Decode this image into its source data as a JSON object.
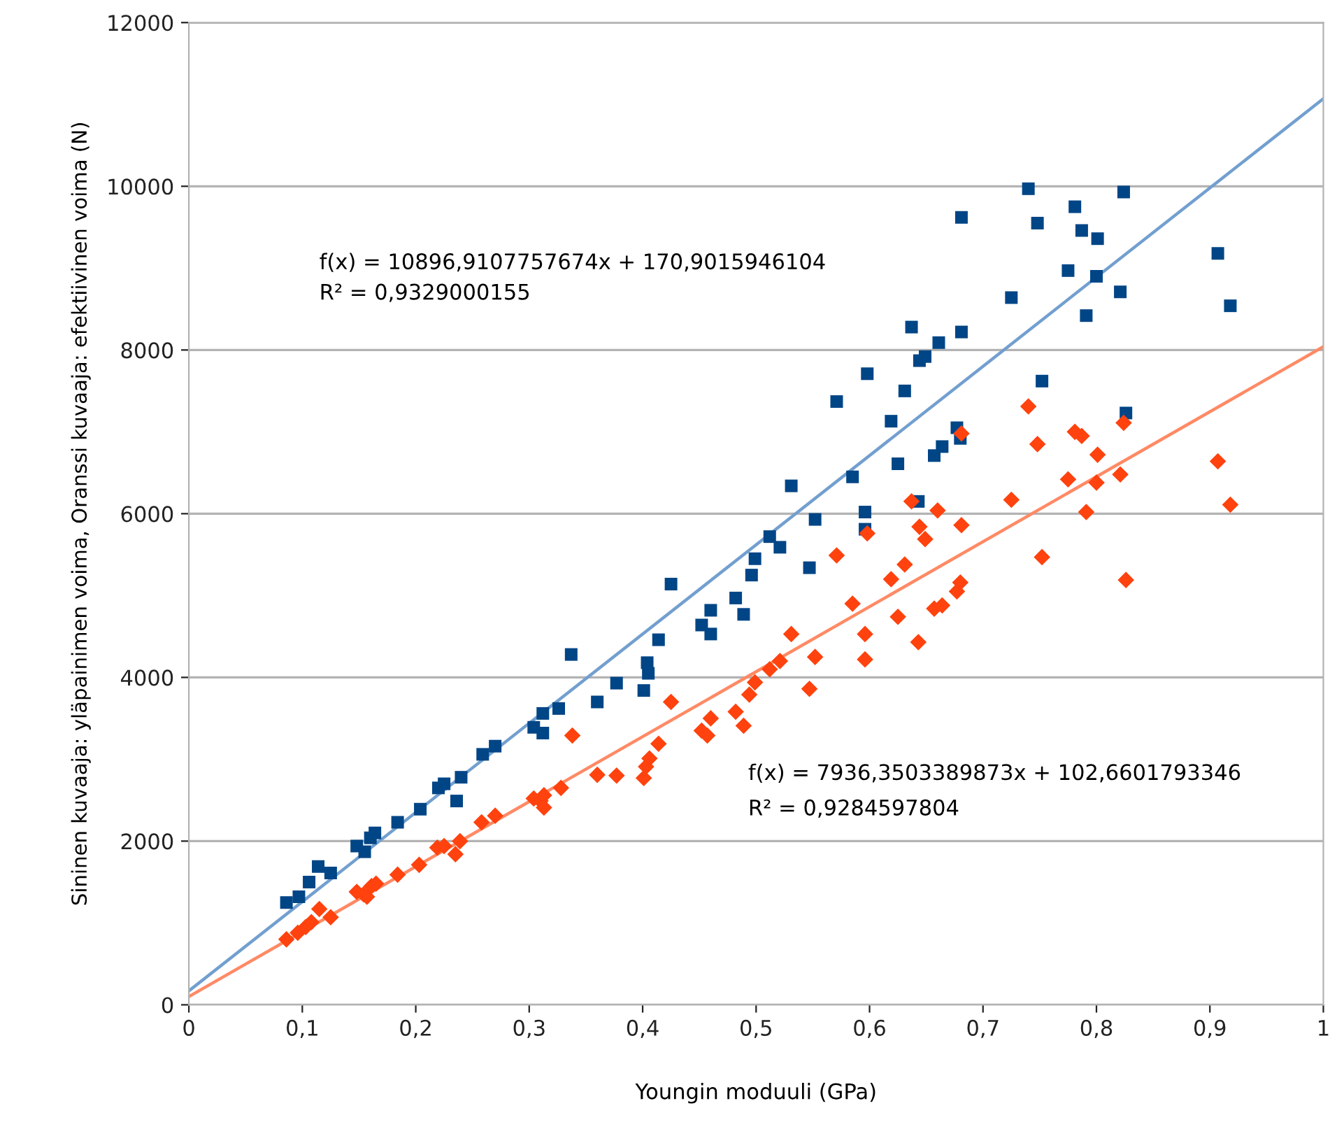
{
  "chart_data": {
    "type": "scatter",
    "xlabel": "Youngin moduuli (GPa)",
    "ylabel": "Sininen kuvaaja: yläpainimen voima, Oranssi kuvaaja: efektiivinen voima (N)",
    "xlim": [
      0,
      1
    ],
    "ylim": [
      0,
      12000
    ],
    "xticks": [
      0,
      {
        "value": 0.1,
        "label": "0,1"
      },
      {
        "value": 0.2,
        "label": "0,2"
      },
      {
        "value": 0.3,
        "label": "0,3"
      },
      {
        "value": 0.4,
        "label": "0,4"
      },
      {
        "value": 0.5,
        "label": "0,5"
      },
      {
        "value": 0.6,
        "label": "0,6"
      },
      {
        "value": 0.7,
        "label": "0,7"
      },
      {
        "value": 0.8,
        "label": "0,8"
      },
      {
        "value": 0.9,
        "label": "0,9"
      },
      1
    ],
    "yticks": [
      0,
      2000,
      4000,
      6000,
      8000,
      10000,
      12000
    ],
    "grid": "y",
    "legend": false,
    "annotations": [
      "f(x) = 10896,9107757674x + 170,9015946104",
      "R² = 0,9329000155",
      "f(x) = 7936,3503389873x + 102,6601793346",
      "R² = 0,9284597804"
    ],
    "series": [
      {
        "marker": "square",
        "color": "#004586",
        "x": [
          0.086,
          0.097,
          0.106,
          0.114,
          0.125,
          0.148,
          0.155,
          0.16,
          0.164,
          0.184,
          0.204,
          0.22,
          0.225,
          0.236,
          0.24,
          0.259,
          0.27,
          0.304,
          0.312,
          0.312,
          0.326,
          0.337,
          0.36,
          0.377,
          0.401,
          0.404,
          0.405,
          0.414,
          0.425,
          0.452,
          0.46,
          0.46,
          0.482,
          0.489,
          0.496,
          0.499,
          0.512,
          0.521,
          0.531,
          0.547,
          0.552,
          0.571,
          0.585,
          0.596,
          0.596,
          0.598,
          0.619,
          0.625,
          0.631,
          0.637,
          0.643,
          0.644,
          0.649,
          0.661,
          0.657,
          0.664,
          0.677,
          0.68,
          0.681,
          0.681,
          0.725,
          0.74,
          0.748,
          0.752,
          0.775,
          0.781,
          0.787,
          0.791,
          0.8,
          0.801,
          0.821,
          0.824,
          0.826,
          0.907,
          0.918
        ],
        "values": [
          1250,
          1320,
          1500,
          1690,
          1610,
          1940,
          1870,
          2040,
          2100,
          2230,
          2390,
          2650,
          2700,
          2490,
          2780,
          3060,
          3160,
          3390,
          3560,
          3320,
          3620,
          4280,
          3700,
          3930,
          3840,
          4180,
          4050,
          4460,
          5140,
          4640,
          4820,
          4530,
          4970,
          4770,
          5250,
          5450,
          5720,
          5590,
          6340,
          5340,
          5930,
          7370,
          6450,
          6020,
          5810,
          7710,
          7130,
          6610,
          7500,
          8280,
          6150,
          7870,
          7920,
          8090,
          6710,
          6820,
          7050,
          6920,
          8220,
          9620,
          8640,
          9970,
          9550,
          7620,
          8970,
          9750,
          9460,
          8420,
          8900,
          9360,
          8710,
          9930,
          7230,
          9180,
          8540
        ]
      },
      {
        "marker": "diamond",
        "color": "#ff420e",
        "x": [
          0.086,
          0.096,
          0.103,
          0.108,
          0.115,
          0.125,
          0.148,
          0.154,
          0.157,
          0.161,
          0.165,
          0.184,
          0.203,
          0.219,
          0.225,
          0.235,
          0.239,
          0.258,
          0.27,
          0.304,
          0.31,
          0.313,
          0.313,
          0.328,
          0.338,
          0.36,
          0.377,
          0.401,
          0.403,
          0.406,
          0.414,
          0.425,
          0.452,
          0.457,
          0.46,
          0.482,
          0.489,
          0.494,
          0.499,
          0.512,
          0.521,
          0.531,
          0.547,
          0.552,
          0.571,
          0.585,
          0.596,
          0.596,
          0.598,
          0.619,
          0.625,
          0.631,
          0.637,
          0.643,
          0.644,
          0.649,
          0.66,
          0.657,
          0.664,
          0.677,
          0.68,
          0.681,
          0.681,
          0.725,
          0.74,
          0.748,
          0.752,
          0.775,
          0.781,
          0.787,
          0.791,
          0.8,
          0.801,
          0.821,
          0.824,
          0.826,
          0.907,
          0.918
        ],
        "values": [
          800,
          880,
          950,
          1010,
          1170,
          1070,
          1380,
          1350,
          1320,
          1450,
          1480,
          1590,
          1710,
          1920,
          1940,
          1840,
          2000,
          2230,
          2310,
          2520,
          2490,
          2410,
          2560,
          2650,
          3290,
          2810,
          2800,
          2770,
          2910,
          3010,
          3190,
          3700,
          3350,
          3290,
          3500,
          3580,
          3410,
          3790,
          3940,
          4100,
          4200,
          4530,
          3860,
          4250,
          5490,
          4900,
          4530,
          4220,
          5760,
          5200,
          4740,
          5380,
          6150,
          4430,
          5840,
          5690,
          6040,
          4840,
          4880,
          5050,
          5160,
          5860,
          6980,
          6170,
          7310,
          6850,
          5470,
          6420,
          7000,
          6950,
          6020,
          6380,
          6720,
          6480,
          7110,
          5190,
          6640,
          6110
        ]
      },
      {
        "type": "line",
        "marker": "none",
        "line_style": "solid",
        "color": "#729fcf",
        "x": [
          0,
          1
        ],
        "values": [
          170,
          11070
        ]
      },
      {
        "type": "line",
        "marker": "none",
        "line_style": "solid",
        "color": "#ff8a65",
        "x": [
          0,
          1
        ],
        "values": [
          100,
          8040
        ]
      }
    ]
  }
}
